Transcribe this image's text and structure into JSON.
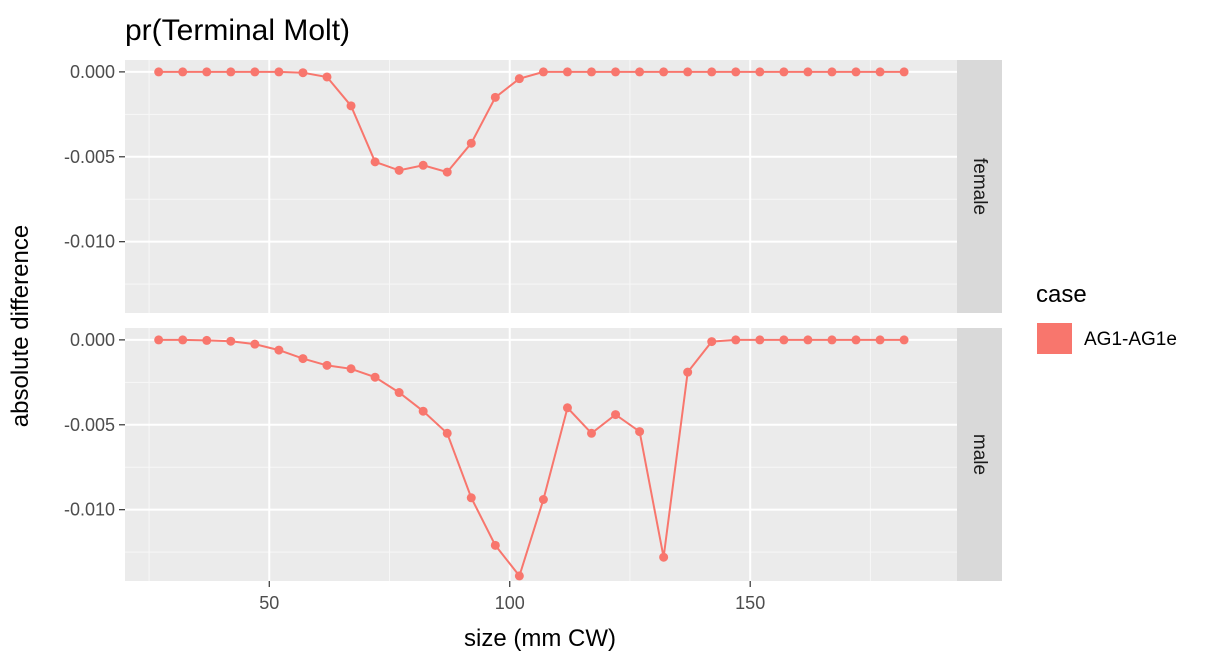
{
  "chart_data": {
    "type": "line",
    "title": "pr(Terminal Molt)",
    "xlabel": "size (mm CW)",
    "ylabel": "absolute difference",
    "xlim": [
      20,
      193
    ],
    "ylim": [
      -0.0142,
      0.0007
    ],
    "x_ticks": [
      50,
      100,
      150
    ],
    "x_tick_labels": [
      "50",
      "100",
      "150"
    ],
    "y_ticks": [
      0.0,
      -0.005,
      -0.01
    ],
    "y_tick_labels": [
      "0.000",
      "-0.005",
      "-0.010"
    ],
    "grid": true,
    "legend": {
      "title": "case",
      "position": "right",
      "entries": [
        "AG1-AG1e"
      ]
    },
    "series_color": "#F8766D",
    "x": [
      27,
      32,
      37,
      42,
      47,
      52,
      57,
      62,
      67,
      72,
      77,
      82,
      87,
      92,
      97,
      102,
      107,
      112,
      117,
      122,
      127,
      132,
      137,
      142,
      147,
      152,
      157,
      162,
      167,
      172,
      177,
      182
    ],
    "panels": [
      {
        "label": "female",
        "series": [
          {
            "name": "AG1-AG1e",
            "values": [
              0,
              0,
              0,
              0,
              0,
              0,
              -5e-05,
              -0.0003,
              -0.002,
              -0.0053,
              -0.0058,
              -0.0055,
              -0.0059,
              -0.0042,
              -0.0015,
              -0.0004,
              0,
              0,
              0,
              0,
              0,
              0,
              0,
              0,
              0,
              0,
              0,
              0,
              0,
              0,
              0,
              0
            ]
          }
        ]
      },
      {
        "label": "male",
        "series": [
          {
            "name": "AG1-AG1e",
            "values": [
              0,
              0,
              -3e-05,
              -8e-05,
              -0.00025,
              -0.0006,
              -0.0011,
              -0.0015,
              -0.0017,
              -0.0022,
              -0.0031,
              -0.0042,
              -0.0055,
              -0.0093,
              -0.0121,
              -0.0139,
              -0.0094,
              -0.004,
              -0.0055,
              -0.0044,
              -0.0054,
              -0.0128,
              -0.0019,
              -0.0001,
              0,
              0,
              0,
              0,
              0,
              0,
              0,
              0
            ]
          }
        ]
      }
    ]
  }
}
